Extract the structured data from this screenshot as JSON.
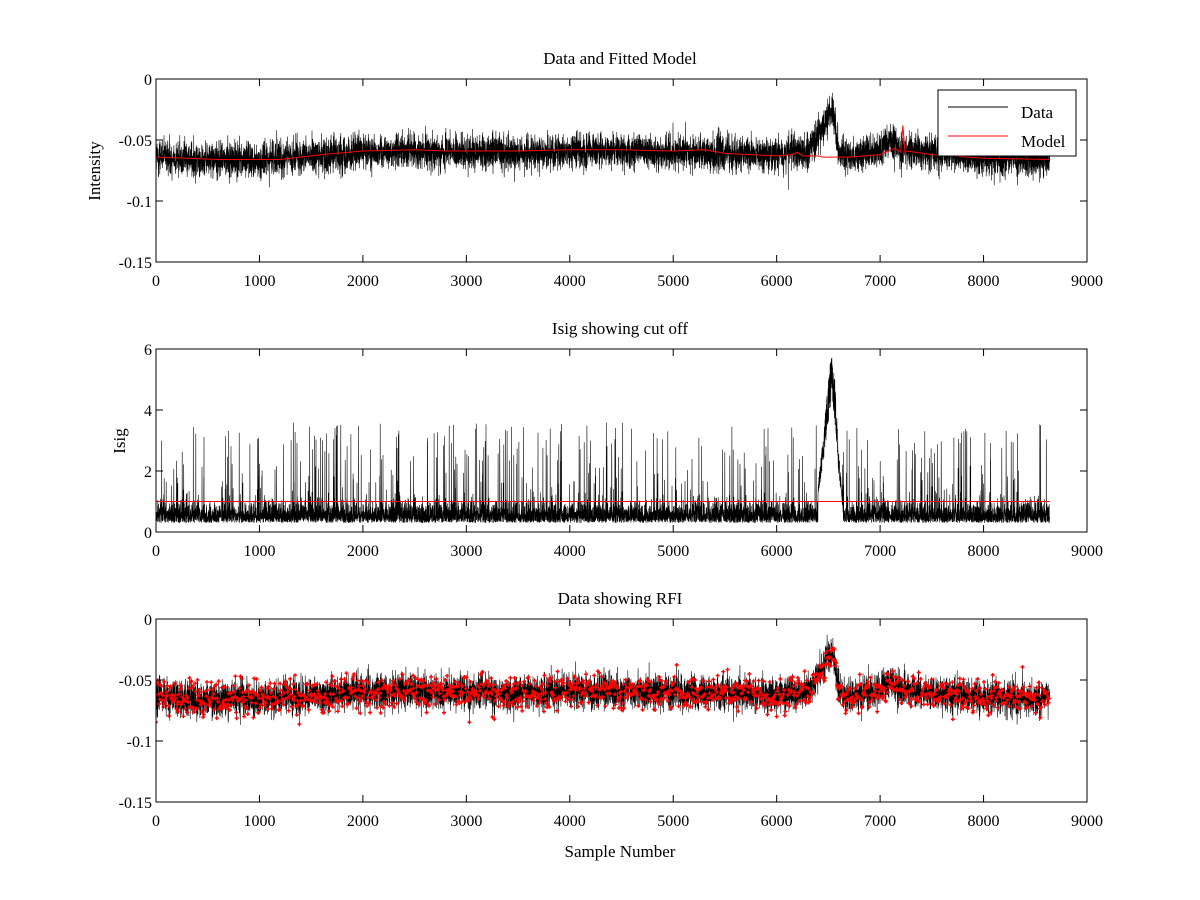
{
  "colors": {
    "data": "#000000",
    "model": "#ff0000",
    "rfi": "#ff0000",
    "axes": "#000000",
    "background": "#ffffff"
  },
  "chart_data": [
    {
      "type": "line",
      "title": "Data and Fitted Model",
      "xlabel": "",
      "ylabel": "Intensity",
      "xlim": [
        0,
        9000
      ],
      "ylim": [
        -0.15,
        0
      ],
      "xticks": [
        0,
        1000,
        2000,
        3000,
        4000,
        5000,
        6000,
        7000,
        8000,
        9000
      ],
      "yticks": [
        -0.15,
        -0.1,
        -0.05,
        0
      ],
      "xtick_labels": [
        "0",
        "1000",
        "2000",
        "3000",
        "4000",
        "5000",
        "6000",
        "7000",
        "8000",
        "9000"
      ],
      "ytick_labels": [
        "-0.15",
        "-0.1",
        "-0.05",
        "0"
      ],
      "legend": {
        "position": "top-right",
        "entries": [
          "Data",
          "Model"
        ]
      },
      "grid": false,
      "series": [
        {
          "name": "Data",
          "color": "#000000",
          "kind": "noisy-trace",
          "n_samples": 8640,
          "noise_amplitude": 0.012,
          "envelope_x": [
            0,
            500,
            1000,
            1500,
            2000,
            2500,
            3000,
            3500,
            4000,
            4500,
            5000,
            5500,
            6000,
            6300,
            6450,
            6500,
            6550,
            6600,
            6700,
            7000,
            7100,
            7200,
            7500,
            8000,
            8640
          ],
          "envelope_y": [
            -0.064,
            -0.066,
            -0.066,
            -0.063,
            -0.06,
            -0.059,
            -0.06,
            -0.061,
            -0.059,
            -0.059,
            -0.06,
            -0.061,
            -0.062,
            -0.06,
            -0.04,
            -0.027,
            -0.03,
            -0.06,
            -0.064,
            -0.058,
            -0.052,
            -0.058,
            -0.061,
            -0.064,
            -0.066
          ],
          "min_y": -0.1,
          "max_y": -0.005
        },
        {
          "name": "Model",
          "color": "#ff0000",
          "kind": "line",
          "x": [
            0,
            300,
            600,
            1000,
            1200,
            1600,
            2000,
            2500,
            2800,
            3000,
            3500,
            4000,
            4500,
            5000,
            5300,
            5500,
            6000,
            6150,
            6200,
            6250,
            6400,
            6450,
            6600,
            6700,
            7000,
            7100,
            7150,
            7200,
            7220,
            7240,
            7260,
            7500,
            8000,
            8640
          ],
          "y": [
            -0.064,
            -0.065,
            -0.066,
            -0.066,
            -0.066,
            -0.062,
            -0.059,
            -0.058,
            -0.059,
            -0.059,
            -0.059,
            -0.058,
            -0.058,
            -0.059,
            -0.058,
            -0.061,
            -0.063,
            -0.062,
            -0.06,
            -0.063,
            -0.063,
            -0.064,
            -0.064,
            -0.064,
            -0.062,
            -0.058,
            -0.057,
            -0.06,
            -0.038,
            -0.06,
            -0.059,
            -0.062,
            -0.065,
            -0.066
          ]
        }
      ]
    },
    {
      "type": "line",
      "title": "Isig showing cut off",
      "xlabel": "",
      "ylabel": "Isig",
      "xlim": [
        0,
        9000
      ],
      "ylim": [
        0,
        6
      ],
      "xticks": [
        0,
        1000,
        2000,
        3000,
        4000,
        5000,
        6000,
        7000,
        8000,
        9000
      ],
      "yticks": [
        0,
        2,
        4,
        6
      ],
      "xtick_labels": [
        "0",
        "1000",
        "2000",
        "3000",
        "4000",
        "5000",
        "6000",
        "7000",
        "8000",
        "9000"
      ],
      "ytick_labels": [
        "0",
        "2",
        "4",
        "6"
      ],
      "grid": false,
      "series": [
        {
          "color": "#000000",
          "kind": "noisy-trace",
          "n_samples": 8640,
          "baseline": 0.8,
          "max_y": 5.6,
          "peak_x": [
            6400,
            6450,
            6500,
            6530,
            6560,
            6600,
            6640
          ],
          "peak_y": [
            1.5,
            3.0,
            4.8,
            5.6,
            4.9,
            2.5,
            1.0
          ],
          "spikes_max": 3.6
        },
        {
          "color": "#ff0000",
          "kind": "line",
          "x": [
            0,
            8640
          ],
          "y": [
            1.0,
            1.0
          ]
        }
      ]
    },
    {
      "type": "scatter",
      "title": "Data showing RFI",
      "xlabel": "Sample Number",
      "ylabel": "",
      "xlim": [
        0,
        9000
      ],
      "ylim": [
        -0.15,
        0
      ],
      "xticks": [
        0,
        1000,
        2000,
        3000,
        4000,
        5000,
        6000,
        7000,
        8000,
        9000
      ],
      "yticks": [
        -0.15,
        -0.1,
        -0.05,
        0
      ],
      "xtick_labels": [
        "0",
        "1000",
        "2000",
        "3000",
        "4000",
        "5000",
        "6000",
        "7000",
        "8000",
        "9000"
      ],
      "ytick_labels": [
        "-0.15",
        "-0.1",
        "-0.05",
        "0"
      ],
      "grid": false,
      "series": [
        {
          "color": "#000000",
          "kind": "noisy-trace",
          "n_samples": 8640,
          "noise_amplitude": 0.012
        },
        {
          "color": "#ff0000",
          "kind": "markers",
          "marker": "+",
          "note_visible": "flagged samples overlay nearly all data"
        }
      ]
    }
  ]
}
